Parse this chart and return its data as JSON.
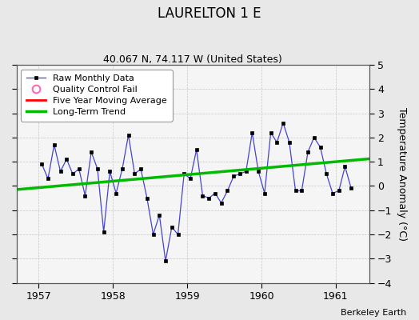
{
  "title": "LAURELTON 1 E",
  "subtitle": "40.067 N, 74.117 W (United States)",
  "ylabel": "Temperature Anomaly (°C)",
  "credit": "Berkeley Earth",
  "xlim": [
    1956.7,
    1961.45
  ],
  "ylim": [
    -4,
    5
  ],
  "yticks": [
    -4,
    -3,
    -2,
    -1,
    0,
    1,
    2,
    3,
    4,
    5
  ],
  "xticks": [
    1957,
    1958,
    1959,
    1960,
    1961
  ],
  "bg_color": "#e8e8e8",
  "plot_bg_color": "#f5f5f5",
  "raw_data_x": [
    1957.042,
    1957.125,
    1957.208,
    1957.292,
    1957.375,
    1957.458,
    1957.542,
    1957.625,
    1957.708,
    1957.792,
    1957.875,
    1957.958,
    1958.042,
    1958.125,
    1958.208,
    1958.292,
    1958.375,
    1958.458,
    1958.542,
    1958.625,
    1958.708,
    1958.792,
    1958.875,
    1958.958,
    1959.042,
    1959.125,
    1959.208,
    1959.292,
    1959.375,
    1959.458,
    1959.542,
    1959.625,
    1959.708,
    1959.792,
    1959.875,
    1959.958,
    1960.042,
    1960.125,
    1960.208,
    1960.292,
    1960.375,
    1960.458,
    1960.542,
    1960.625,
    1960.708,
    1960.792,
    1960.875,
    1960.958,
    1961.042,
    1961.125,
    1961.208
  ],
  "raw_data_y": [
    0.9,
    0.3,
    1.7,
    0.6,
    1.1,
    0.5,
    0.7,
    -0.4,
    1.4,
    0.7,
    -1.9,
    0.6,
    -0.3,
    0.7,
    2.1,
    0.5,
    0.7,
    -0.5,
    -2.0,
    -1.2,
    -3.1,
    -1.7,
    -2.0,
    0.5,
    0.3,
    1.5,
    -0.4,
    -0.5,
    -0.3,
    -0.7,
    -0.2,
    0.4,
    0.5,
    0.6,
    2.2,
    0.6,
    -0.3,
    2.2,
    1.8,
    2.6,
    1.8,
    -0.2,
    -0.2,
    1.4,
    2.0,
    1.6,
    0.5,
    -0.3,
    -0.2,
    0.8,
    -0.1
  ],
  "trend_x": [
    1956.7,
    1961.45
  ],
  "trend_y": [
    -0.15,
    1.12
  ],
  "raw_color": "#4444cc",
  "trend_color": "#00bb00",
  "mavg_color": "#ff0000",
  "qc_color": "#ff69b4",
  "legend_loc": "upper left"
}
